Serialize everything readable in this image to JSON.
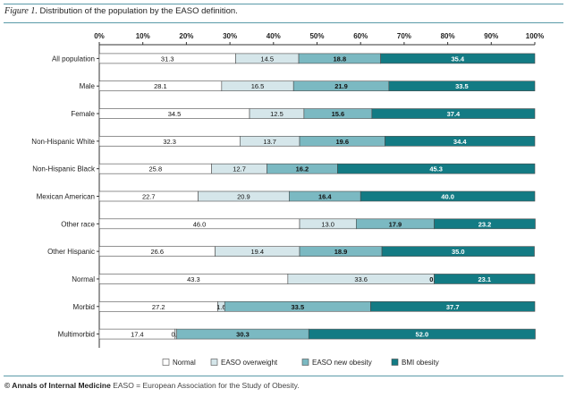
{
  "figure": {
    "label": "Figure 1.",
    "caption": "Distribution of the population by the EASO definition.",
    "source_credit": "© Annals of Internal Medicine",
    "source_text": "EASO = European Association for the Study of Obesity."
  },
  "colors": {
    "Normal": "#ffffff",
    "EASO overweight": "#d5e6ea",
    "EASO new obesity": "#7bb9c2",
    "BMI obesity": "#137b84",
    "rule": "#5a9aa8",
    "outline": "#4a4a4a"
  },
  "chart_data": {
    "type": "bar",
    "orientation": "horizontal",
    "stacked": true,
    "title": "Distribution of the population by the EASO definition.",
    "xlabel": "",
    "ylabel": "",
    "xlim": [
      0,
      100
    ],
    "x_ticks": [
      "0%",
      "10%",
      "20%",
      "30%",
      "40%",
      "50%",
      "60%",
      "70%",
      "80%",
      "90%",
      "100%"
    ],
    "legend_position": "bottom-right",
    "categories": [
      "All population",
      "Male",
      "Female",
      "Non-Hispanic White",
      "Non-Hispanic Black",
      "Mexican American",
      "Other race",
      "Other Hispanic",
      "Normal",
      "Morbid",
      "Multimorbid"
    ],
    "series": [
      {
        "name": "Normal",
        "values": [
          31.3,
          28.1,
          34.5,
          32.3,
          25.8,
          22.7,
          46.0,
          26.6,
          43.3,
          27.2,
          17.4
        ],
        "labels": [
          "31.3",
          "28.1",
          "34.5",
          "32.3",
          "25.8",
          "22.7",
          "46.0",
          "26.6",
          "43.3",
          "27.2",
          "17.4"
        ]
      },
      {
        "name": "EASO overweight",
        "values": [
          14.5,
          16.5,
          12.5,
          13.7,
          12.7,
          20.9,
          13.0,
          19.4,
          33.6,
          1.6,
          0.4
        ],
        "labels": [
          "14.5",
          "16.5",
          "12.5",
          "13.7",
          "12.7",
          "20.9",
          "13.0",
          "19.4",
          "33.6",
          "1.6",
          "0.4"
        ]
      },
      {
        "name": "EASO new obesity",
        "values": [
          18.8,
          21.9,
          15.6,
          19.6,
          16.2,
          16.4,
          17.9,
          18.9,
          0.0,
          33.5,
          30.3
        ],
        "labels": [
          "18.8",
          "21.9",
          "15.6",
          "19.6",
          "16.2",
          "16.4",
          "17.9",
          "18.9",
          "0.0",
          "33.5",
          "30.3"
        ]
      },
      {
        "name": "BMI obesity",
        "values": [
          35.4,
          33.5,
          37.4,
          34.4,
          45.3,
          40.0,
          23.2,
          35.0,
          23.1,
          37.7,
          52.0
        ],
        "labels": [
          "35.4",
          "33.5",
          "37.4",
          "34.4",
          "45.3",
          "40.0",
          "23.2",
          "35.0",
          "23.1",
          "37.7",
          "52.0"
        ]
      }
    ]
  }
}
